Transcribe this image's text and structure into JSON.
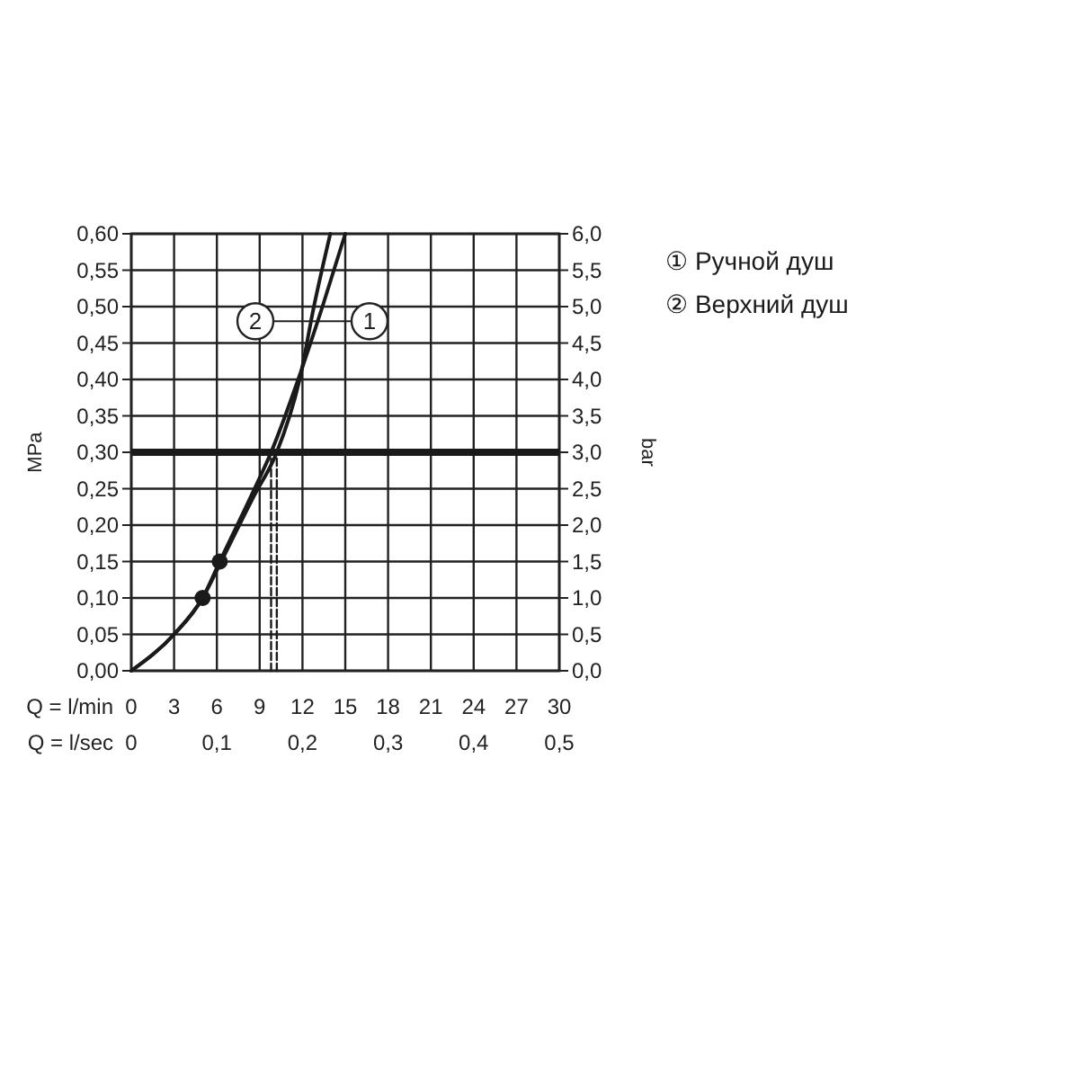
{
  "chart_data": {
    "type": "line",
    "xlabel": "Q = l/min",
    "ylabel": "MPa",
    "y2label": "bar",
    "x2label": "Q = l/sec",
    "xlim": [
      0,
      30
    ],
    "xticks": [
      0,
      3,
      6,
      9,
      12,
      15,
      18,
      21,
      24,
      27,
      30
    ],
    "ylim": [
      0,
      0.6
    ],
    "yticks": [
      {
        "value": 0,
        "label": "0,00"
      },
      {
        "value": 0.05,
        "label": "0,05"
      },
      {
        "value": 0.1,
        "label": "0,10"
      },
      {
        "value": 0.15,
        "label": "0,15"
      },
      {
        "value": 0.2,
        "label": "0,20"
      },
      {
        "value": 0.25,
        "label": "0,25"
      },
      {
        "value": 0.3,
        "label": "0,30"
      },
      {
        "value": 0.35,
        "label": "0,35"
      },
      {
        "value": 0.4,
        "label": "0,40"
      },
      {
        "value": 0.45,
        "label": "0,45"
      },
      {
        "value": 0.5,
        "label": "0,50"
      },
      {
        "value": 0.55,
        "label": "0,55"
      },
      {
        "value": 0.6,
        "label": "0,60"
      }
    ],
    "y2lim": [
      0,
      6
    ],
    "y2ticks": [
      {
        "value": 0,
        "label": "0,0"
      },
      {
        "value": 0.5,
        "label": "0,5"
      },
      {
        "value": 1,
        "label": "1,0"
      },
      {
        "value": 1.5,
        "label": "1,5"
      },
      {
        "value": 2,
        "label": "2,0"
      },
      {
        "value": 2.5,
        "label": "2,5"
      },
      {
        "value": 3,
        "label": "3,0"
      },
      {
        "value": 3.5,
        "label": "3,5"
      },
      {
        "value": 4,
        "label": "4,0"
      },
      {
        "value": 4.5,
        "label": "4,5"
      },
      {
        "value": 5,
        "label": "5,0"
      },
      {
        "value": 5.5,
        "label": "5,5"
      },
      {
        "value": 6,
        "label": "6,0"
      }
    ],
    "x2lim": [
      0,
      0.5
    ],
    "x2ticks": [
      0,
      {
        "value": 0.1,
        "label": "0,1"
      },
      {
        "value": 0.2,
        "label": "0,2"
      },
      {
        "value": 0.3,
        "label": "0,3"
      },
      {
        "value": 0.4,
        "label": "0,4"
      },
      {
        "value": 0.5,
        "label": "0,5"
      }
    ],
    "grid": true,
    "legend": "right",
    "series": [
      {
        "name": "① Ручной душ",
        "color": "#1a1a1a",
        "x": [
          0,
          3,
          5,
          6.2,
          8.4,
          9.8,
          11.7,
          13.4,
          15
        ],
        "values": [
          0,
          0.05,
          0.1,
          0.15,
          0.24,
          0.3,
          0.4,
          0.5,
          0.6
        ]
      },
      {
        "name": "② Верхний душ",
        "color": "#1a1a1a",
        "x": [
          0,
          3,
          5,
          6.3,
          8.6,
          10.2,
          11.8,
          12.8,
          13.95
        ],
        "values": [
          0,
          0.05,
          0.1,
          0.15,
          0.24,
          0.3,
          0.4,
          0.5,
          0.6
        ]
      },
      {
        "type": "scatter",
        "marker": "circle",
        "color": "#1a1a1a",
        "x": [
          6.2
        ],
        "values": [
          0.15
        ]
      },
      {
        "type": "scatter",
        "marker": "circle",
        "color": "#1a1a1a",
        "x": [
          5
        ],
        "values": [
          0.1
        ]
      },
      {
        "color": "#1a1a1a",
        "line_style": "dashed",
        "x": [
          9.8,
          9.8
        ],
        "values": [
          0,
          0.3
        ]
      },
      {
        "color": "#1a1a1a",
        "line_style": "dashed",
        "x": [
          10.2,
          10.2
        ],
        "values": [
          0,
          0.3
        ]
      }
    ],
    "ref_lines": [
      {
        "axis": "y",
        "value": 0.3,
        "color": "#1a1a1a"
      }
    ],
    "annotations": [
      {
        "text": "2",
        "x": 8.7,
        "y": 0.48
      },
      {
        "text": "1",
        "x": 16.7,
        "y": 0.48
      }
    ]
  }
}
